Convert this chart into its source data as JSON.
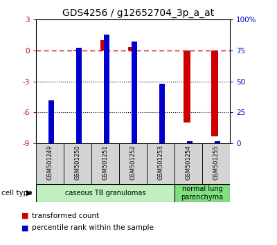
{
  "title": "GDS4256 / g12652704_3p_a_at",
  "samples": [
    "GSM501249",
    "GSM501250",
    "GSM501251",
    "GSM501252",
    "GSM501253",
    "GSM501254",
    "GSM501255"
  ],
  "transformed_count": [
    0.0,
    0.05,
    1.0,
    0.35,
    0.0,
    -7.0,
    -8.3
  ],
  "percentile_rank_pct": [
    35,
    77,
    88,
    82,
    48,
    2,
    2
  ],
  "red_color": "#CC0000",
  "blue_color": "#0000CC",
  "ylim_left": [
    -9,
    3
  ],
  "ylim_right": [
    0,
    100
  ],
  "yticks_left": [
    -9,
    -6,
    -3,
    0,
    3
  ],
  "ytick_labels_left": [
    "-9",
    "-6",
    "-3",
    "0",
    "3"
  ],
  "yticks_right": [
    0,
    25,
    50,
    75,
    100
  ],
  "ytick_labels_right": [
    "0",
    "25",
    "50",
    "75",
    "100%"
  ],
  "cell_types": [
    {
      "label": "caseous TB granulomas",
      "start": 0,
      "end": 5,
      "color": "#c0f0c0"
    },
    {
      "label": "normal lung\nparenchyma",
      "start": 5,
      "end": 7,
      "color": "#80e080"
    }
  ],
  "legend_red": "transformed count",
  "legend_blue": "percentile rank within the sample",
  "red_bar_width": 0.25,
  "blue_bar_width": 0.18,
  "background_color": "#ffffff",
  "label_box_color": "#d4d4d4",
  "zero_line_color": "#CC0000"
}
